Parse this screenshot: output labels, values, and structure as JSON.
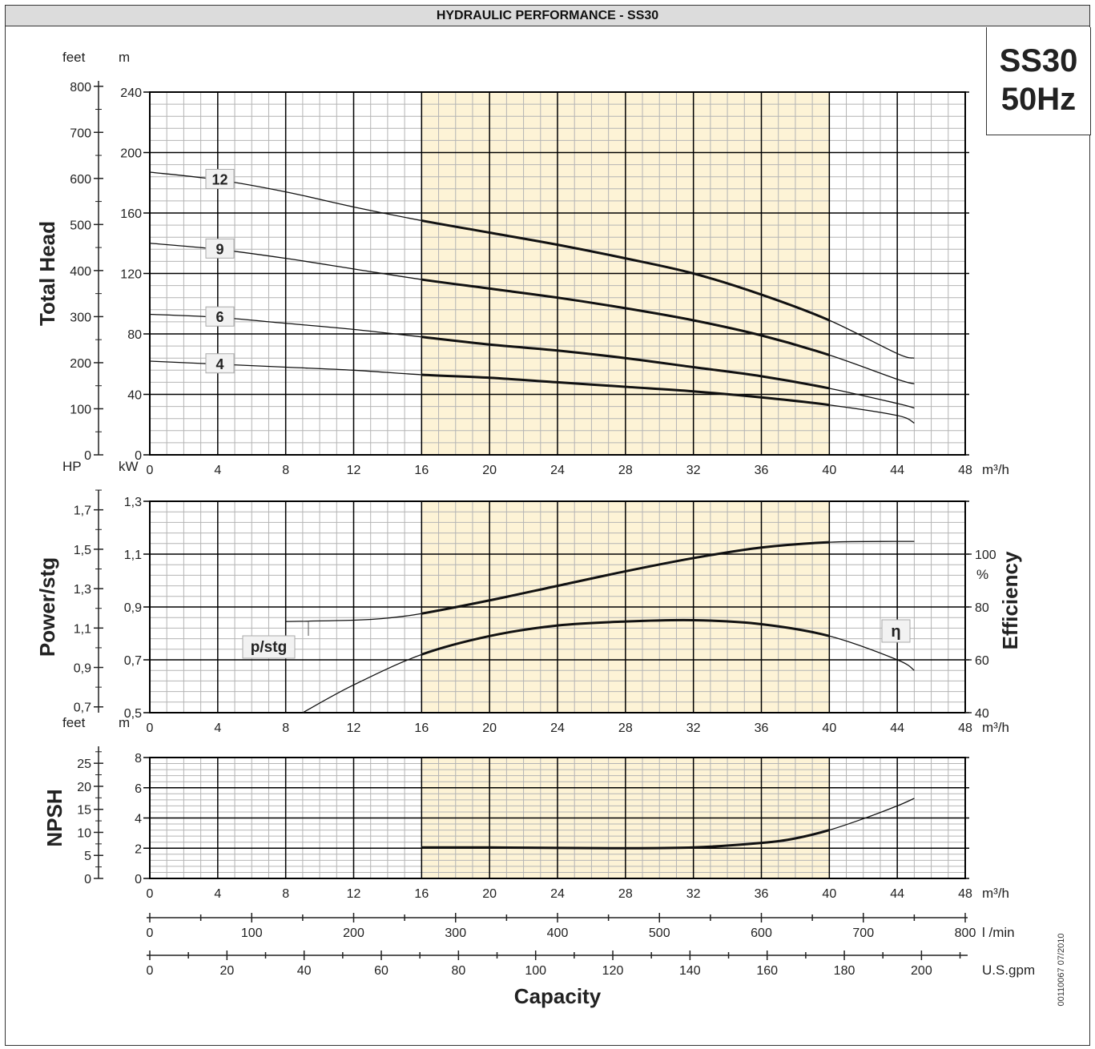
{
  "header": {
    "title": "HYDRAULIC PERFORMANCE - SS30"
  },
  "model_box": {
    "line1": "SS30",
    "line2": "50Hz"
  },
  "colors": {
    "frame": "#333333",
    "grid_minor": "#b4b4b4",
    "grid_major": "#000000",
    "band": "#fdf3d6",
    "curve": "#111111"
  },
  "footnote": "00110067  07/2010",
  "chart_data": [
    {
      "id": "head",
      "type": "line",
      "xlabel": "",
      "xunit": "m³/h",
      "xlim": [
        0,
        48
      ],
      "xticks": [
        0,
        4,
        8,
        12,
        16,
        20,
        24,
        28,
        32,
        36,
        40,
        44,
        48
      ],
      "ylim": [
        0,
        240
      ],
      "yticks": [
        0,
        40,
        80,
        120,
        160,
        200,
        240
      ],
      "yunit": "m",
      "left_axis": {
        "label": "Total Head",
        "unit": "feet",
        "ticks": [
          0,
          100,
          200,
          300,
          400,
          500,
          600,
          700,
          800
        ],
        "factor": 3.28084
      },
      "highlight_band": [
        16,
        40
      ],
      "series": [
        {
          "name": "12",
          "x": [
            0,
            4,
            8,
            12,
            16,
            20,
            24,
            28,
            32,
            36,
            40,
            44,
            45
          ],
          "y": [
            187,
            182,
            174,
            164,
            155,
            147,
            139,
            130,
            120,
            106,
            89,
            67,
            64
          ]
        },
        {
          "name": "9",
          "x": [
            0,
            4,
            8,
            12,
            16,
            20,
            24,
            28,
            32,
            36,
            40,
            44,
            45
          ],
          "y": [
            140,
            136,
            130,
            123,
            116,
            110,
            104,
            97,
            89,
            79,
            66,
            50,
            47
          ]
        },
        {
          "name": "6",
          "x": [
            0,
            4,
            8,
            12,
            16,
            20,
            24,
            28,
            32,
            36,
            40,
            44,
            45
          ],
          "y": [
            93,
            91,
            87,
            83,
            78,
            73,
            69,
            64,
            58,
            52,
            44,
            34,
            31
          ]
        },
        {
          "name": "4",
          "x": [
            0,
            4,
            8,
            12,
            16,
            20,
            24,
            28,
            32,
            36,
            40,
            44,
            45
          ],
          "y": [
            62,
            60,
            58,
            56,
            53,
            51,
            48,
            45,
            42,
            38,
            33,
            26,
            21
          ]
        }
      ],
      "labels": [
        "12",
        "9",
        "6",
        "4"
      ]
    },
    {
      "id": "power_eff",
      "type": "line",
      "xunit": "m³/h",
      "xlim": [
        0,
        48
      ],
      "xticks": [
        0,
        4,
        8,
        12,
        16,
        20,
        24,
        28,
        32,
        36,
        40,
        44,
        48
      ],
      "ylim": [
        0.5,
        1.3
      ],
      "yticks": [
        "0,5",
        "0,7",
        "0,9",
        "1,1",
        "1,3"
      ],
      "yunit": "kW",
      "left_axis": {
        "label": "Power/stg",
        "unit": "HP",
        "ticks": [
          "0,7",
          "0,9",
          "1,1",
          "1,3",
          "1,5",
          "1,7"
        ],
        "values": [
          0.7,
          0.9,
          1.1,
          1.3,
          1.5,
          1.7
        ]
      },
      "right_axis": {
        "label": "Efficiency",
        "unit": "%",
        "ticks": [
          "40",
          "60",
          "80",
          "100"
        ],
        "values": [
          40,
          60,
          80,
          100
        ],
        "ylim": [
          40,
          120
        ]
      },
      "highlight_band": [
        16,
        40
      ],
      "series": [
        {
          "name": "p/stg",
          "axis": "kW",
          "x": [
            8,
            12,
            14,
            16,
            20,
            24,
            28,
            32,
            36,
            40,
            44,
            45
          ],
          "y": [
            0.845,
            0.85,
            0.858,
            0.875,
            0.925,
            0.98,
            1.035,
            1.085,
            1.125,
            1.145,
            1.148,
            1.148
          ]
        },
        {
          "name": "η",
          "axis": "%",
          "x": [
            9,
            12,
            16,
            20,
            24,
            28,
            32,
            36,
            40,
            44,
            45
          ],
          "y": [
            40,
            50.5,
            62,
            69,
            73,
            74.5,
            75,
            73.5,
            69,
            60,
            56
          ]
        }
      ],
      "labels": [
        "p/stg",
        "η"
      ]
    },
    {
      "id": "npsh",
      "type": "line",
      "xunit": "m³/h",
      "xlim": [
        0,
        48
      ],
      "xticks": [
        0,
        4,
        8,
        12,
        16,
        20,
        24,
        28,
        32,
        36,
        40,
        44,
        48
      ],
      "ylim": [
        0,
        8
      ],
      "yticks": [
        0,
        2,
        4,
        6,
        8
      ],
      "yunit": "m",
      "left_axis": {
        "label": "NPSH",
        "unit": "feet",
        "ticks": [
          0,
          5,
          10,
          15,
          20,
          25
        ],
        "factor": 3.28084
      },
      "highlight_band": [
        16,
        40
      ],
      "series": [
        {
          "name": "",
          "x": [
            16,
            20,
            24,
            28,
            32,
            36,
            38,
            40,
            42,
            44,
            45
          ],
          "y": [
            2.05,
            2.05,
            2.02,
            2.0,
            2.05,
            2.35,
            2.65,
            3.2,
            3.95,
            4.8,
            5.3
          ]
        }
      ]
    }
  ],
  "capacity_axes": {
    "title": "Capacity",
    "lmin": {
      "unit": "l /min",
      "ticks": [
        0,
        100,
        200,
        300,
        400,
        500,
        600,
        700,
        800
      ]
    },
    "gpm": {
      "unit": "U.S.gpm",
      "ticks": [
        0,
        20,
        40,
        60,
        80,
        100,
        120,
        140,
        160,
        180,
        200
      ]
    }
  }
}
